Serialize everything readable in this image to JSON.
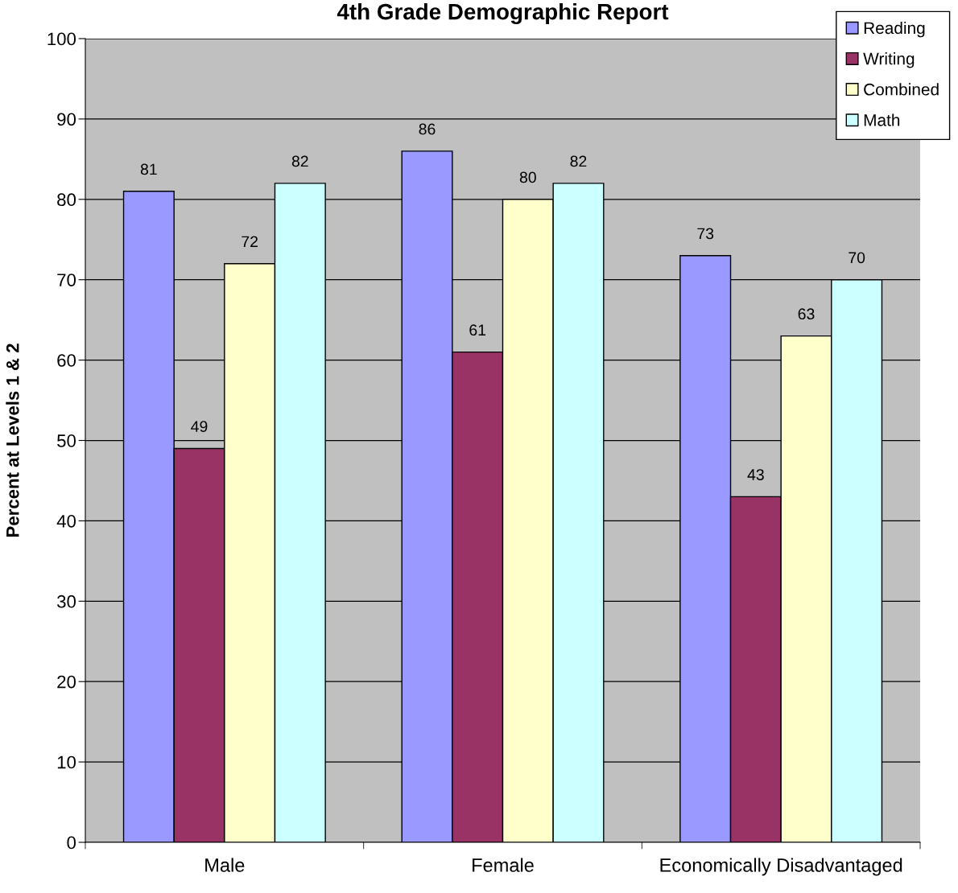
{
  "chart_data": {
    "type": "bar",
    "title": "4th Grade Demographic Report",
    "ylabel": "Percent at Levels 1 & 2",
    "categories": [
      "Male",
      "Female",
      "Economically Disadvantaged"
    ],
    "series": [
      {
        "name": "Reading",
        "color": "#9999ff",
        "values": [
          81,
          86,
          73
        ]
      },
      {
        "name": "Writing",
        "color": "#993366",
        "values": [
          49,
          61,
          43
        ]
      },
      {
        "name": "Combined",
        "color": "#ffffcc",
        "values": [
          72,
          80,
          63
        ]
      },
      {
        "name": "Math",
        "color": "#ccffff",
        "values": [
          82,
          82,
          70
        ]
      }
    ],
    "ylim": [
      0,
      100
    ],
    "yticks": [
      0,
      10,
      20,
      30,
      40,
      50,
      60,
      70,
      80,
      90,
      100
    ],
    "grid": "y",
    "legend": "top right",
    "data_labels": true
  }
}
